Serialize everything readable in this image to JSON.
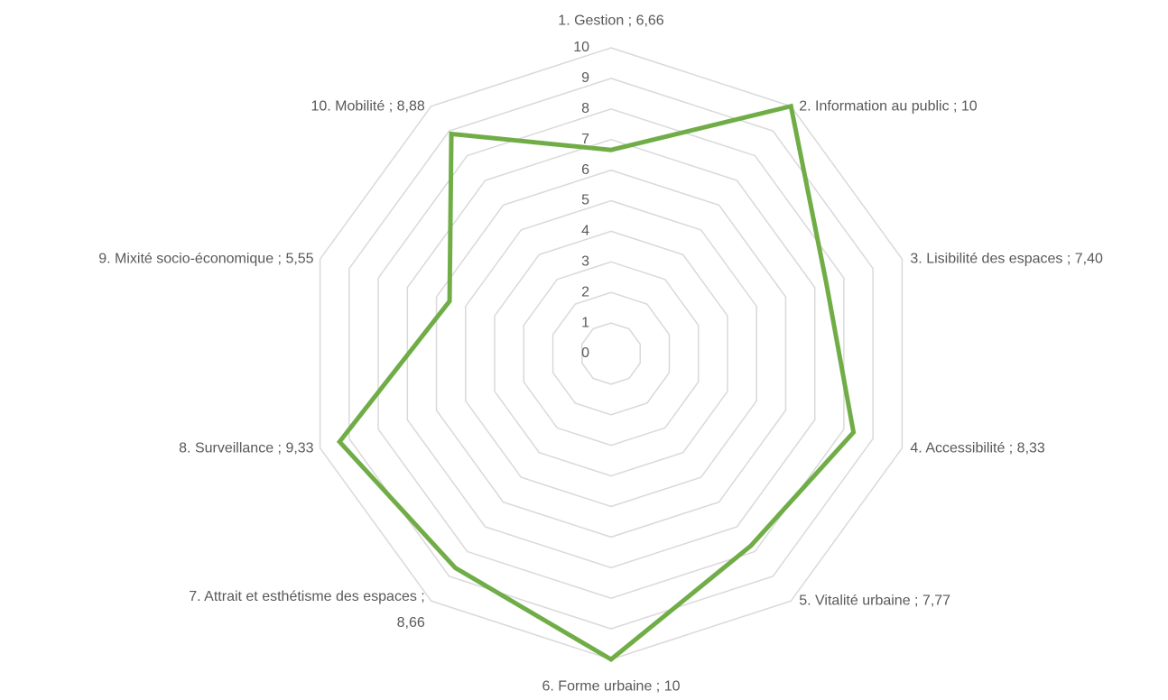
{
  "chart_data": {
    "type": "radar",
    "categories": [
      "1. Gestion ; 6,66",
      "2. Information au public ; 10",
      "3. Lisibilité des espaces ; 7,40",
      "4. Accessibilité ; 8,33",
      "5. Vitalité urbaine ; 7,77",
      "6. Forme urbaine ; 10",
      "7. Attrait et esthétisme des espaces ; 8,66",
      "8. Surveillance ; 9,33",
      "9. Mixité socio-économique ; 5,55",
      "10. Mobilité ; 8,88"
    ],
    "values": [
      6.66,
      10,
      7.4,
      8.33,
      7.77,
      10,
      8.66,
      9.33,
      5.55,
      8.88
    ],
    "color": "#70ad47",
    "rlim": [
      0,
      10
    ],
    "rticks": [
      0,
      1,
      2,
      3,
      4,
      5,
      6,
      7,
      8,
      9,
      10
    ],
    "grid": true
  }
}
